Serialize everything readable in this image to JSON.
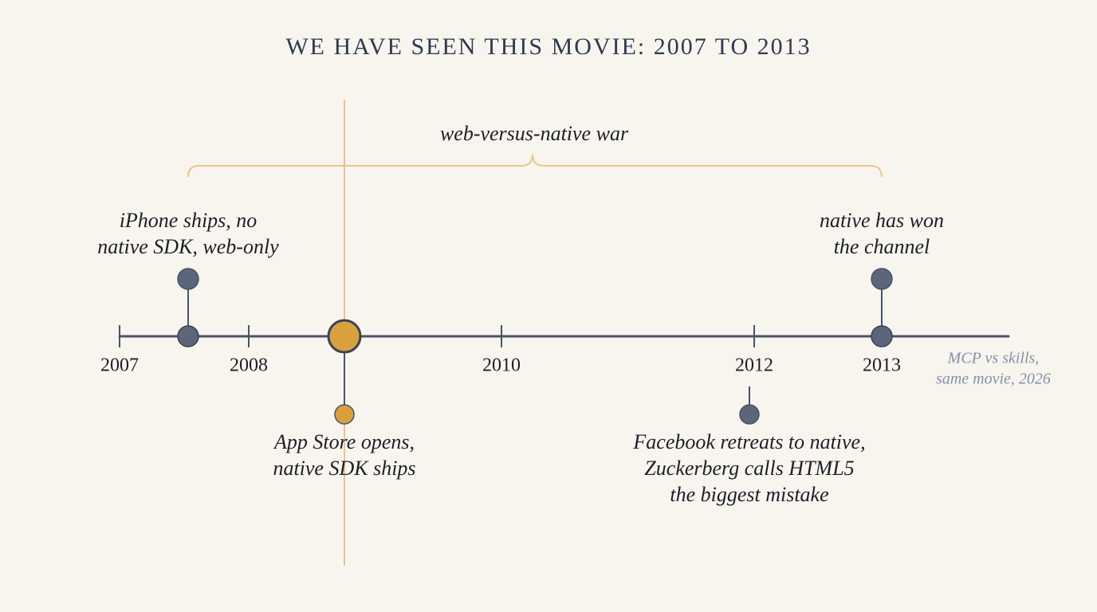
{
  "title": "WE HAVE SEEN THIS MOVIE: 2007 TO 2013",
  "span_label": "web-versus-native war",
  "years": [
    "2007",
    "2008",
    "2010",
    "2012",
    "2013"
  ],
  "events": [
    {
      "lines": [
        "iPhone ships, no",
        "native SDK, web-only"
      ]
    },
    {
      "lines": [
        "App Store opens,",
        "native SDK ships"
      ]
    },
    {
      "lines": [
        "Facebook retreats to native,",
        "Zuckerberg calls HTML5",
        "the biggest mistake"
      ]
    },
    {
      "lines": [
        "native has won",
        "the channel"
      ]
    }
  ],
  "note": [
    "MCP vs skills,",
    "same movie, 2026"
  ]
}
